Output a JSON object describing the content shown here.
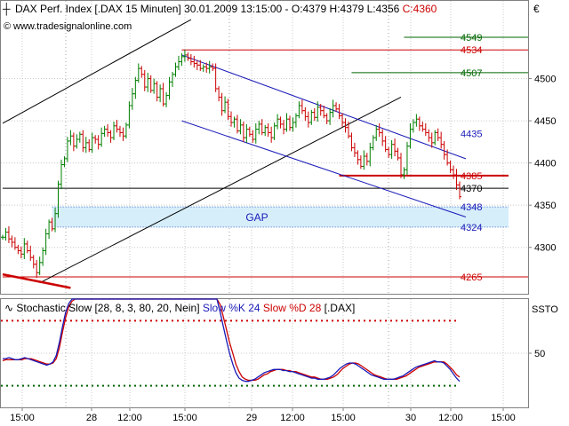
{
  "header": {
    "title": "DAX Perf. Index [.DAX  15 Minuten] 30.01.2009 13:15:00 - O:4379 H:4379 L:4356 C:4360",
    "title_main": "DAX Perf. Index [.DAX  15 Minuten] 30.01.2009 13:15:00 - O:4379 H:4379 L:4356",
    "close_label": "C:4360",
    "website": "www.tradesignalonline.com",
    "currency": "€"
  },
  "colors": {
    "up": "#008000",
    "down": "#cc0000",
    "channel": "#1a1ab8",
    "trendline": "#000000",
    "gap_fill": "#d6eefa",
    "stoch_k": "#1a1ab8",
    "stoch_d": "#cc0000",
    "grid": "#c8c8c8"
  },
  "chart_data": [
    {
      "type": "candlestick",
      "ylim": [
        4245,
        4590
      ],
      "yticks": [
        4300,
        4350,
        4400,
        4450,
        4500
      ],
      "xticks": [
        "15:00",
        "28",
        "12:00",
        "15:00",
        "29",
        "12:00",
        "15:00",
        "30",
        "12:00",
        "15:00"
      ],
      "price_levels": [
        {
          "value": 4549,
          "label": "4549",
          "color": "#006600"
        },
        {
          "value": 4534,
          "label": "4534",
          "color": "#cc0000"
        },
        {
          "value": 4507,
          "label": "4507",
          "color": "#006600"
        },
        {
          "value": 4435,
          "label": "4435",
          "color": "#1a1ab8"
        },
        {
          "value": 4385,
          "label": "4385",
          "color": "#cc0000"
        },
        {
          "value": 4370,
          "label": "4370",
          "color": "#000000"
        },
        {
          "value": 4348,
          "label": "4348",
          "color": "#1a1ab8"
        },
        {
          "value": 4324,
          "label": "4324",
          "color": "#1a1ab8"
        },
        {
          "value": 4265,
          "label": "4265",
          "color": "#cc0000"
        }
      ],
      "gap": {
        "from": 4324,
        "to": 4348,
        "label": "GAP"
      },
      "closes": [
        4312,
        4318,
        4310,
        4306,
        4300,
        4296,
        4292,
        4304,
        4296,
        4288,
        4280,
        4270,
        4282,
        4296,
        4316,
        4330,
        4322,
        4340,
        4375,
        4398,
        4405,
        4426,
        4432,
        4420,
        4428,
        4434,
        4418,
        4424,
        4416,
        4430,
        4428,
        4422,
        4435,
        4440,
        4436,
        4430,
        4444,
        4440,
        4436,
        4432,
        4445,
        4468,
        4482,
        4498,
        4512,
        4505,
        4490,
        4500,
        4486,
        4494,
        4478,
        4488,
        4470,
        4480,
        4496,
        4505,
        4514,
        4520,
        4526,
        4528,
        4524,
        4520,
        4518,
        4516,
        4512,
        4514,
        4512,
        4514,
        4512,
        4488,
        4478,
        4462,
        4472,
        4455,
        4448,
        4452,
        4438,
        4445,
        4430,
        4440,
        4434,
        4428,
        4440,
        4446,
        4436,
        4442,
        4436,
        4430,
        4444,
        4452,
        4446,
        4440,
        4452,
        4442,
        4448,
        4456,
        4468,
        4462,
        4455,
        4448,
        4460,
        4454,
        4466,
        4462,
        4456,
        4450,
        4460,
        4468,
        4464,
        4456,
        4448,
        4442,
        4432,
        4418,
        4412,
        4404,
        4396,
        4408,
        4402,
        4418,
        4430,
        4440,
        4436,
        4426,
        4416,
        4410,
        4422,
        4414,
        4406,
        4386,
        4392,
        4420,
        4440,
        4448,
        4452,
        4444,
        4440,
        4436,
        4430,
        4424,
        4436,
        4430,
        4422,
        4410,
        4400,
        4392,
        4386,
        4374,
        4360
      ],
      "trendlines": [
        {
          "name": "upper-rising",
          "from": [
            0,
            4447
          ],
          "to": [
            61,
            4570
          ]
        },
        {
          "name": "lower-rising",
          "from": [
            12,
            4258
          ],
          "to": [
            129,
            4478
          ]
        },
        {
          "name": "channel-top",
          "from": [
            58,
            4528
          ],
          "to": [
            150,
            4405
          ]
        },
        {
          "name": "channel-bottom",
          "from": [
            58,
            4450
          ],
          "to": [
            150,
            4336
          ]
        },
        {
          "name": "falling-red",
          "from": [
            0,
            4268
          ],
          "to": [
            22,
            4252
          ]
        }
      ],
      "horizontal_lines": [
        {
          "value": 4549,
          "from": 130
        },
        {
          "value": 4534,
          "from": 58
        },
        {
          "value": 4507,
          "from": 113
        },
        {
          "value": 4385,
          "from": 109
        },
        {
          "value": 4370,
          "from": 0
        },
        {
          "value": 4265,
          "from": 0
        }
      ]
    },
    {
      "type": "line",
      "title": "Stochastic Slow [28, 8, 3, 80, 20, Nein]",
      "title_main": "Stochastic Slow [28, 8, 3, 80, 20, Nein]",
      "label_k": "Slow %K 24",
      "label_d": "Slow %D 28",
      "label_sym": "[.DAX]",
      "axis_label": "SSTO",
      "ylim": [
        0,
        100
      ],
      "yticks": [
        50
      ],
      "bands": [
        80,
        20
      ],
      "series": [
        {
          "name": "Slow %K 24",
          "values": [
            45,
            45,
            46,
            45,
            44,
            44,
            45,
            46,
            45,
            44,
            43,
            42,
            41,
            40,
            39,
            40,
            42,
            48,
            60,
            75,
            88,
            96,
            100,
            100,
            100,
            100,
            100,
            100,
            100,
            100,
            100,
            100,
            100,
            100,
            100,
            100,
            100,
            100,
            100,
            100,
            100,
            100,
            100,
            100,
            100,
            100,
            100,
            100,
            100,
            100,
            100,
            100,
            100,
            100,
            100,
            100,
            100,
            100,
            100,
            100,
            100,
            100,
            100,
            100,
            100,
            100,
            100,
            100,
            100,
            88,
            75,
            62,
            50,
            40,
            32,
            27,
            25,
            24,
            24,
            25,
            26,
            28,
            30,
            32,
            33,
            34,
            35,
            35,
            35,
            34,
            34,
            33,
            33,
            32,
            31,
            30,
            29,
            28,
            27,
            27,
            26,
            26,
            26,
            27,
            28,
            30,
            33,
            36,
            38,
            40,
            41,
            41,
            40,
            38,
            36,
            34,
            32,
            30,
            29,
            28,
            27,
            26,
            26,
            26,
            26,
            27,
            28,
            29,
            31,
            33,
            35,
            37,
            38,
            39,
            40,
            41,
            42,
            43,
            42,
            42,
            41,
            38,
            35,
            31,
            27,
            24
          ]
        },
        {
          "name": "Slow %D 28",
          "values": [
            43,
            44,
            44,
            44,
            44,
            44,
            44,
            45,
            45,
            45,
            44,
            43,
            42,
            41,
            40,
            40,
            41,
            45,
            55,
            70,
            83,
            93,
            98,
            100,
            100,
            100,
            100,
            100,
            100,
            100,
            100,
            100,
            100,
            100,
            100,
            100,
            100,
            100,
            100,
            100,
            100,
            100,
            100,
            100,
            100,
            100,
            100,
            100,
            100,
            100,
            100,
            100,
            100,
            100,
            100,
            100,
            100,
            100,
            100,
            100,
            100,
            100,
            100,
            100,
            100,
            100,
            100,
            100,
            100,
            95,
            84,
            72,
            60,
            50,
            40,
            33,
            28,
            26,
            25,
            25,
            25,
            26,
            28,
            30,
            31,
            33,
            34,
            35,
            35,
            35,
            34,
            34,
            33,
            33,
            32,
            31,
            30,
            29,
            28,
            28,
            27,
            26,
            26,
            26,
            27,
            28,
            30,
            33,
            36,
            38,
            40,
            41,
            41,
            40,
            38,
            36,
            34,
            32,
            30,
            29,
            28,
            27,
            26,
            26,
            26,
            26,
            27,
            28,
            29,
            31,
            33,
            35,
            37,
            38,
            39,
            40,
            41,
            42,
            42,
            42,
            42,
            40,
            37,
            34,
            30,
            28
          ]
        }
      ]
    }
  ]
}
